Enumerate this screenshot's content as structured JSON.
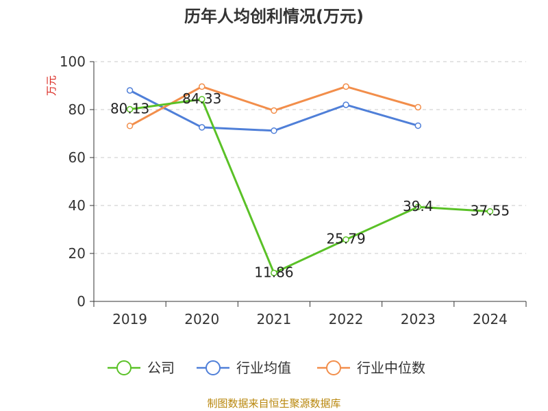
{
  "chart_data": {
    "type": "line",
    "title": "历年人均创利情况(万元)",
    "ylabel": "万元",
    "xlabel": "",
    "categories": [
      "2019",
      "2020",
      "2021",
      "2022",
      "2023",
      "2024"
    ],
    "ylim": [
      0,
      100
    ],
    "yticks": [
      0,
      20,
      40,
      60,
      80,
      100
    ],
    "grid": true,
    "legend_position": "bottom",
    "series": [
      {
        "name": "公司",
        "color": "#5ac127",
        "values": [
          80.13,
          84.33,
          11.86,
          25.79,
          39.4,
          37.55
        ],
        "labels": [
          "80.13",
          "84.33",
          "11.86",
          "25.79",
          "39.4",
          "37.55"
        ]
      },
      {
        "name": "行业均值",
        "color": "#4f7fd8",
        "values": [
          88,
          72.6,
          71.2,
          82,
          73.3,
          null
        ]
      },
      {
        "name": "行业中位数",
        "color": "#f28e4b",
        "values": [
          73.2,
          89.6,
          79.6,
          89.6,
          81,
          null
        ]
      }
    ]
  },
  "source": "制图数据来自恒生聚源数据库"
}
